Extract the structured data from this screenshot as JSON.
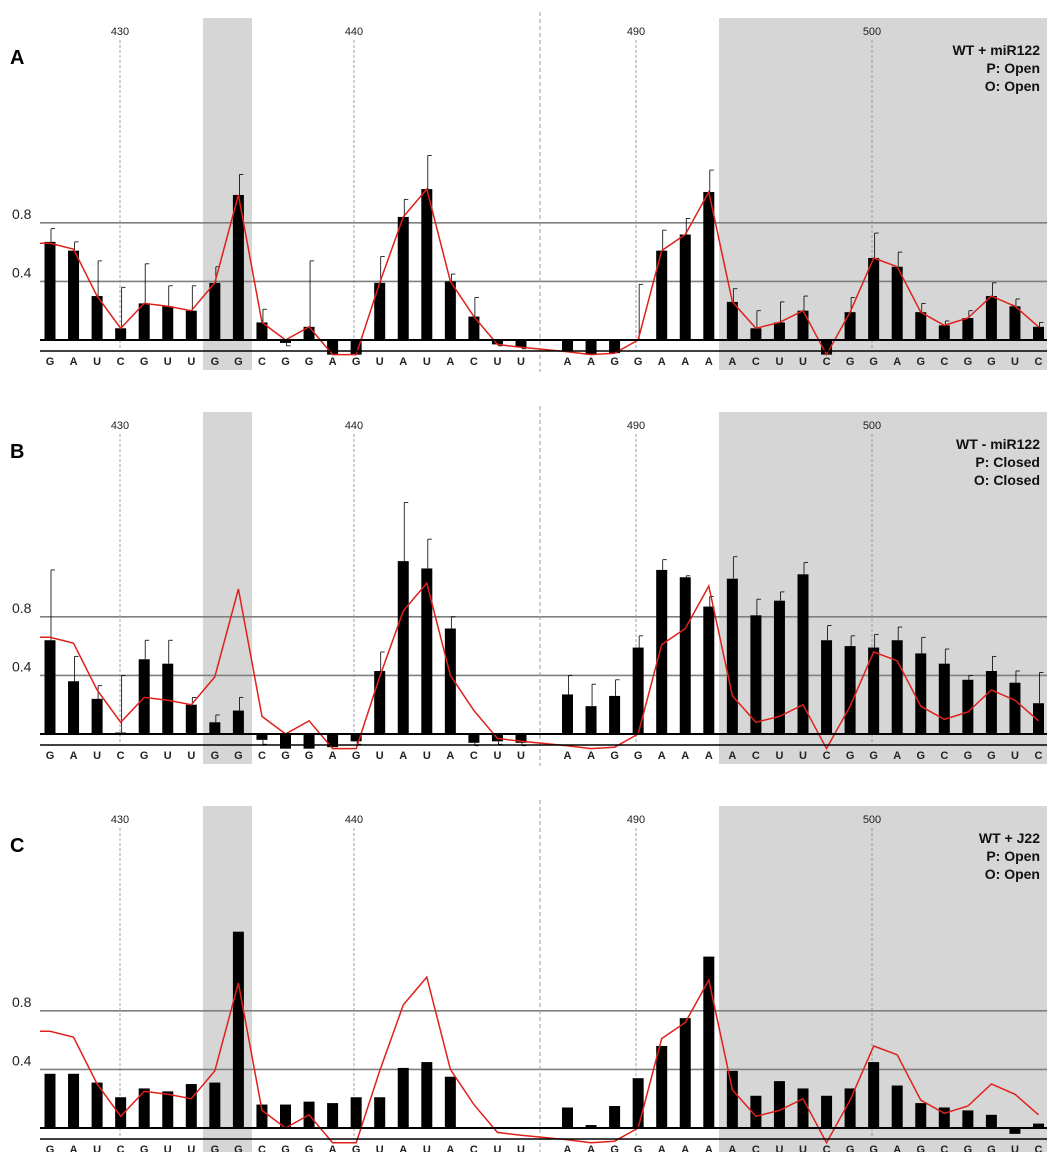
{
  "chart_data": [
    {
      "type": "bar",
      "panel": "A",
      "condition": [
        "WT + miR122",
        "P: Open",
        "O: Open"
      ],
      "segments": [
        {
          "labels": [
            "430",
            "440"
          ],
          "bases": [
            "G",
            "A",
            "U",
            "C",
            "G",
            "U",
            "U",
            "G",
            "G",
            "C",
            "G",
            "G",
            "A",
            "G",
            "U",
            "A",
            "U",
            "A",
            "C",
            "U",
            "U"
          ]
        },
        {
          "labels": [
            "490",
            "500"
          ],
          "bases": [
            "A",
            "A",
            "G",
            "G",
            "A",
            "A",
            "A",
            "A",
            "C",
            "U",
            "U",
            "C",
            "G",
            "G",
            "A",
            "G",
            "C",
            "G",
            "G",
            "U",
            "C"
          ]
        }
      ],
      "yticks": [
        "0.8",
        "0.4"
      ],
      "ylim": [
        -0.13,
        1.72
      ],
      "values": [
        0.67,
        0.61,
        0.3,
        0.08,
        0.25,
        0.23,
        0.2,
        0.39,
        0.99,
        0.12,
        -0.02,
        0.09,
        -0.1,
        -0.1,
        0.39,
        0.84,
        1.03,
        0.4,
        0.16,
        -0.03,
        -0.05,
        -0.08,
        -0.1,
        -0.09,
        0.0,
        0.61,
        0.72,
        1.01,
        0.26,
        0.08,
        0.12,
        0.2,
        -0.1,
        0.19,
        0.56,
        0.5,
        0.19,
        0.1,
        0.15,
        0.3,
        0.23,
        0.09
      ],
      "errors": [
        0.09,
        0.06,
        0.24,
        0.28,
        0.27,
        0.14,
        0.17,
        0.11,
        0.14,
        0.09,
        0.02,
        0.45,
        0,
        0,
        0.18,
        0.12,
        0.23,
        0.05,
        0.13,
        0.01,
        0.01,
        0,
        0,
        0,
        0.38,
        0.14,
        0.11,
        0.15,
        0.09,
        0.12,
        0.14,
        0.1,
        0,
        0.1,
        0.17,
        0.1,
        0.06,
        0.03,
        0.05,
        0.09,
        0.05,
        0.03
      ],
      "reference_line": [
        0.66,
        0.62,
        0.3,
        0.08,
        0.25,
        0.23,
        0.2,
        0.39,
        0.99,
        0.12,
        0.0,
        0.09,
        -0.1,
        -0.1,
        0.39,
        0.84,
        1.03,
        0.4,
        0.16,
        -0.03,
        -0.05,
        -0.08,
        -0.1,
        -0.09,
        0.0,
        0.61,
        0.72,
        1.01,
        0.26,
        0.08,
        0.12,
        0.2,
        -0.1,
        0.19,
        0.56,
        0.5,
        0.19,
        0.1,
        0.15,
        0.3,
        0.23,
        0.09
      ]
    },
    {
      "type": "bar",
      "panel": "B",
      "condition": [
        "WT - miR122",
        "P: Closed",
        "O: Closed"
      ],
      "segments": [
        {
          "labels": [
            "430",
            "440"
          ],
          "bases": [
            "G",
            "A",
            "U",
            "C",
            "G",
            "U",
            "U",
            "G",
            "G",
            "C",
            "G",
            "G",
            "A",
            "G",
            "U",
            "A",
            "U",
            "A",
            "C",
            "U",
            "U"
          ]
        },
        {
          "labels": [
            "490",
            "500"
          ],
          "bases": [
            "A",
            "A",
            "G",
            "G",
            "A",
            "A",
            "A",
            "A",
            "C",
            "U",
            "U",
            "C",
            "G",
            "G",
            "A",
            "G",
            "C",
            "G",
            "G",
            "U",
            "C"
          ]
        }
      ],
      "yticks": [
        "0.8",
        "0.4"
      ],
      "ylim": [
        -0.13,
        1.72
      ],
      "values": [
        0.64,
        0.36,
        0.24,
        0.01,
        0.51,
        0.48,
        0.2,
        0.08,
        0.16,
        -0.04,
        -0.1,
        -0.1,
        -0.09,
        -0.05,
        0.43,
        1.18,
        1.13,
        0.72,
        -0.06,
        -0.05,
        -0.06,
        0.27,
        0.19,
        0.26,
        0.59,
        1.12,
        1.07,
        0.87,
        1.06,
        0.81,
        0.91,
        1.09,
        0.64,
        0.6,
        0.59,
        0.64,
        0.55,
        0.48,
        0.37,
        0.43,
        0.35,
        0.21
      ],
      "errors": [
        0.48,
        0.17,
        0.09,
        0.39,
        0.13,
        0.16,
        0.05,
        0.05,
        0.09,
        0.03,
        0,
        0,
        0,
        0.02,
        0.13,
        0.4,
        0.2,
        0.08,
        0.02,
        0.02,
        0.02,
        0.13,
        0.15,
        0.11,
        0.08,
        0.07,
        0.01,
        0.07,
        0.15,
        0.11,
        0.06,
        0.08,
        0.1,
        0.07,
        0.09,
        0.09,
        0.11,
        0.1,
        0.03,
        0.1,
        0.08,
        0.21
      ],
      "reference_line": [
        0.66,
        0.62,
        0.3,
        0.08,
        0.25,
        0.23,
        0.2,
        0.39,
        0.99,
        0.12,
        0.0,
        0.09,
        -0.1,
        -0.1,
        0.39,
        0.84,
        1.03,
        0.4,
        0.16,
        -0.03,
        -0.05,
        -0.08,
        -0.1,
        -0.09,
        0.0,
        0.61,
        0.72,
        1.01,
        0.26,
        0.08,
        0.12,
        0.2,
        -0.1,
        0.19,
        0.56,
        0.5,
        0.19,
        0.1,
        0.15,
        0.3,
        0.23,
        0.09
      ]
    },
    {
      "type": "bar",
      "panel": "C",
      "condition": [
        "WT + J22",
        "P: Open",
        "O: Open"
      ],
      "segments": [
        {
          "labels": [
            "430",
            "440"
          ],
          "bases": [
            "G",
            "A",
            "U",
            "C",
            "G",
            "U",
            "U",
            "G",
            "G",
            "C",
            "G",
            "G",
            "A",
            "G",
            "U",
            "A",
            "U",
            "A",
            "C",
            "U",
            "U"
          ]
        },
        {
          "labels": [
            "490",
            "500"
          ],
          "bases": [
            "A",
            "A",
            "G",
            "G",
            "A",
            "A",
            "A",
            "A",
            "C",
            "U",
            "U",
            "C",
            "G",
            "G",
            "A",
            "G",
            "C",
            "G",
            "G",
            "U",
            "C"
          ]
        }
      ],
      "yticks": [
        "0.8",
        "0.4"
      ],
      "ylim": [
        -0.13,
        1.72
      ],
      "values": [
        0.37,
        0.37,
        0.31,
        0.21,
        0.27,
        0.25,
        0.3,
        0.31,
        1.34,
        0.16,
        0.16,
        0.18,
        0.17,
        0.21,
        0.21,
        0.41,
        0.45,
        0.35,
        null,
        null,
        null,
        0.14,
        0.02,
        0.15,
        0.34,
        0.56,
        0.75,
        1.17,
        0.39,
        0.22,
        0.32,
        0.27,
        0.22,
        0.27,
        0.45,
        0.29,
        0.17,
        0.14,
        0.12,
        0.09,
        -0.04,
        0.03
      ],
      "errors": [],
      "reference_line": [
        0.66,
        0.62,
        0.3,
        0.08,
        0.25,
        0.23,
        0.2,
        0.39,
        0.99,
        0.12,
        0.0,
        0.09,
        -0.1,
        -0.1,
        0.39,
        0.84,
        1.03,
        0.4,
        0.16,
        -0.03,
        -0.05,
        -0.08,
        -0.1,
        -0.09,
        0.0,
        0.61,
        0.72,
        1.01,
        0.26,
        0.08,
        0.12,
        0.2,
        -0.1,
        0.19,
        0.56,
        0.5,
        0.19,
        0.1,
        0.15,
        0.3,
        0.23,
        0.09
      ]
    }
  ]
}
